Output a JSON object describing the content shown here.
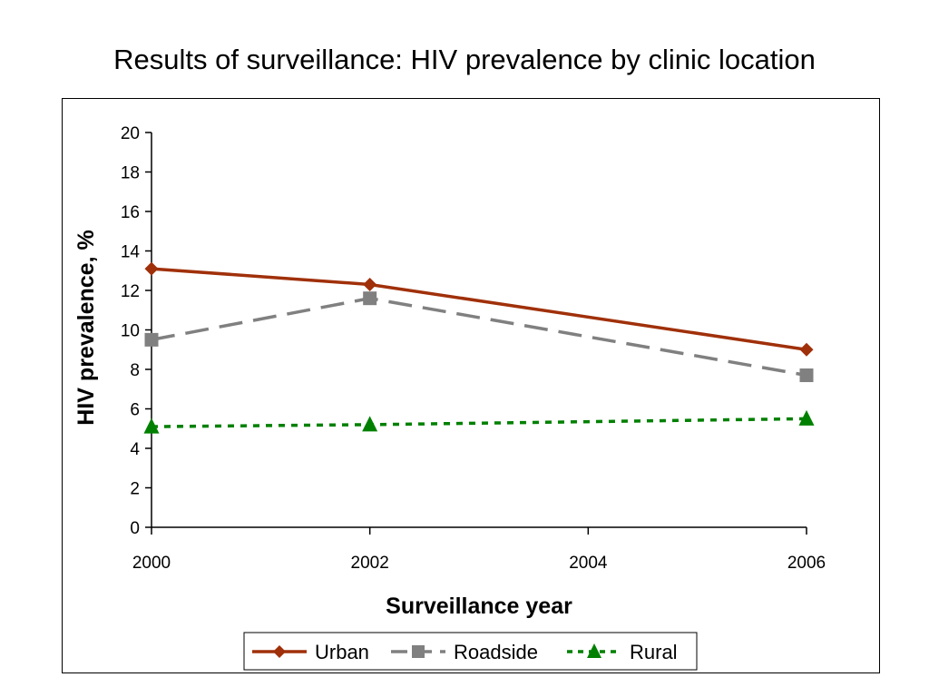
{
  "chart_data": {
    "type": "line",
    "title": "Results of surveillance: HIV prevalence by clinic location",
    "xlabel": "Surveillance year",
    "ylabel": "HIV prevalence, %",
    "xlim": [
      2000,
      2006
    ],
    "ylim": [
      0,
      20
    ],
    "x_ticks": [
      2000,
      2002,
      2004,
      2006
    ],
    "y_ticks": [
      0,
      2,
      4,
      6,
      8,
      10,
      12,
      14,
      16,
      18,
      20
    ],
    "grid": false,
    "legend_position": "bottom",
    "series": [
      {
        "name": "Urban",
        "x": [
          2000,
          2002,
          2006
        ],
        "y": [
          13.1,
          12.3,
          9.0
        ],
        "color": "#a0300a",
        "line_style": "solid",
        "marker": "diamond"
      },
      {
        "name": "Roadside",
        "x": [
          2000,
          2002,
          2006
        ],
        "y": [
          9.5,
          11.6,
          7.7
        ],
        "color": "#808080",
        "line_style": "dashed",
        "marker": "square"
      },
      {
        "name": "Rural",
        "x": [
          2000,
          2002,
          2006
        ],
        "y": [
          5.1,
          5.2,
          5.5
        ],
        "color": "#008000",
        "line_style": "dotted",
        "marker": "triangle"
      }
    ]
  }
}
